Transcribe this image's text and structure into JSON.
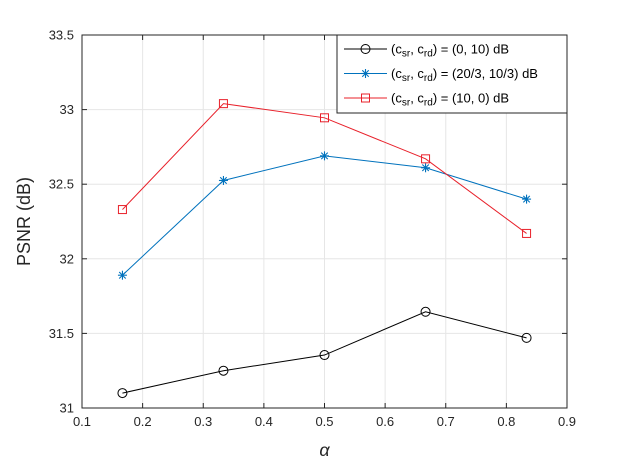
{
  "chart_data": {
    "type": "line",
    "xlabel": "α",
    "ylabel": "PSNR (dB)",
    "xlim": [
      0.1,
      0.9
    ],
    "ylim": [
      31,
      33.5
    ],
    "x_ticks": [
      0.1,
      0.2,
      0.3,
      0.4,
      0.5,
      0.6,
      0.7,
      0.8,
      0.9
    ],
    "y_ticks": [
      31,
      31.5,
      32,
      32.5,
      33,
      33.5
    ],
    "x_tick_labels": [
      "0.1",
      "0.2",
      "0.3",
      "0.4",
      "0.5",
      "0.6",
      "0.7",
      "0.8",
      "0.9"
    ],
    "y_tick_labels": [
      "31",
      "31.5",
      "32",
      "32.5",
      "33",
      "33.5"
    ],
    "grid": true,
    "legend_position": "top-right",
    "x": [
      0.1667,
      0.3333,
      0.5,
      0.6667,
      0.8333
    ],
    "series": [
      {
        "name": "(c_sr, c_rd) = (0, 10) dB",
        "legend_parts": {
          "open": "(c",
          "sub1": "sr",
          "mid": ", c",
          "sub2": "rd",
          "close": ") = (0, 10) dB"
        },
        "color": "#000000",
        "marker": "circle",
        "values": [
          31.1,
          31.25,
          31.355,
          31.645,
          31.47
        ]
      },
      {
        "name": "(c_sr, c_rd) = (20/3, 10/3) dB",
        "legend_parts": {
          "open": "(c",
          "sub1": "sr",
          "mid": ", c",
          "sub2": "rd",
          "close": ") = (20/3, 10/3) dB"
        },
        "color": "#0072BD",
        "marker": "asterisk",
        "values": [
          31.89,
          32.525,
          32.69,
          32.61,
          32.4
        ]
      },
      {
        "name": "(c_sr, c_rd) = (10, 0) dB",
        "legend_parts": {
          "open": "(c",
          "sub1": "sr",
          "mid": ", c",
          "sub2": "rd",
          "close": ") = (10, 0) dB"
        },
        "color": "#E8202A",
        "marker": "square",
        "values": [
          32.33,
          33.04,
          32.945,
          32.67,
          32.17
        ]
      }
    ]
  },
  "colors": {
    "grid": "#e6e6e6",
    "axis": "#262626"
  }
}
